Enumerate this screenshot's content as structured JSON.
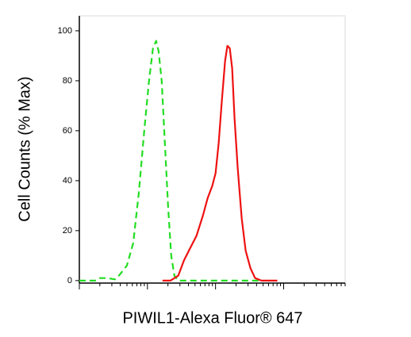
{
  "chart_data": {
    "type": "line",
    "x_label": "PIWIL1-Alexa Fluor® 647",
    "y_label": "Cell Counts (% Max)",
    "xscale": "log",
    "xlim": [
      10,
      80000
    ],
    "xticks": [
      10,
      100,
      1000,
      10000
    ],
    "ylim": [
      -1,
      106
    ],
    "yticks": [
      0,
      20,
      40,
      60,
      80,
      100
    ],
    "series": [
      {
        "color": "#22dd22",
        "dash": true,
        "x": [
          10,
          17.1,
          19.5,
          25.5,
          33.4,
          38.1,
          49.9,
          61.8,
          74.5,
          89.8,
          105.5,
          120.6,
          134.3,
          145.5,
          161.9,
          180.2,
          200.5,
          223.4,
          248.5,
          284,
          424.6,
          2118,
          4722
        ],
        "values": [
          0,
          0,
          1,
          1,
          0.5,
          2,
          6,
          15,
          35,
          60,
          80,
          93,
          96,
          92,
          80,
          55,
          30,
          10,
          2,
          0,
          0,
          0,
          0
        ]
      },
      {
        "color": "#ee1111",
        "dash": false,
        "x": [
          166.3,
          217.3,
          284,
          342.7,
          424.6,
          526,
          651.6,
          765.6,
          897.8,
          1000,
          1113,
          1239,
          1380,
          1494,
          1618,
          1754,
          1901,
          2118,
          2421,
          2767,
          3251,
          3811,
          4722,
          8072
        ],
        "values": [
          0,
          0,
          2,
          8,
          13,
          18,
          26,
          33,
          38,
          43,
          55,
          72,
          88,
          94,
          93,
          85,
          65,
          45,
          25,
          12,
          5,
          1,
          0,
          0
        ]
      }
    ]
  }
}
